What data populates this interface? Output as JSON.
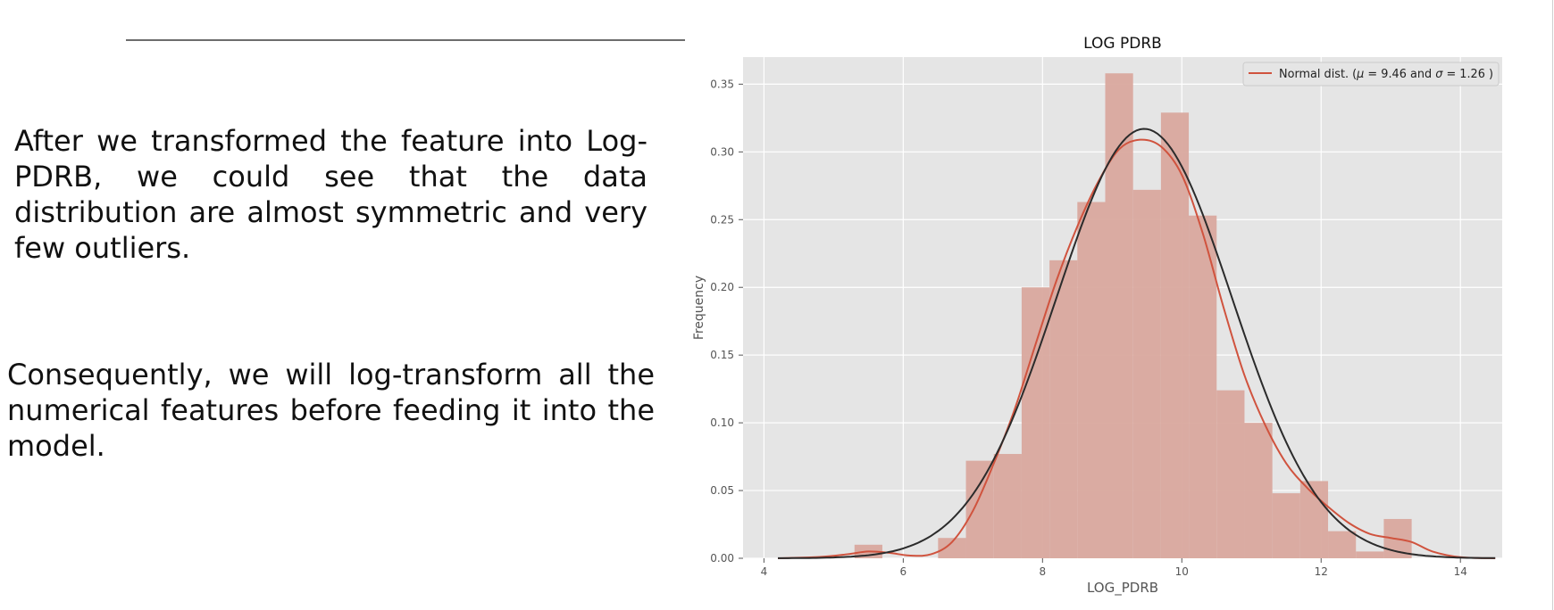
{
  "slide": {
    "paragraph_1": "After we transformed the feature into Log-PDRB, we could see that the data distribution are almost symmetric and very few outliers.",
    "paragraph_2": "Consequently, we will log-transform all the numerical features before feeding it into the model."
  },
  "colors": {
    "plot_bg": "#e5e5e5",
    "grid": "#ffffff",
    "hist_fill": "#d9a89e",
    "kde_line": "#d0533e",
    "normal_line": "#2b2b2b",
    "text": "#333333",
    "tick": "#555555"
  },
  "chart_data": {
    "type": "histogram",
    "title": "LOG PDRB",
    "xlabel": "LOG_PDRB",
    "ylabel": "Frequency",
    "xlim": [
      3.7,
      14.6
    ],
    "ylim": [
      0,
      0.37
    ],
    "xticks": [
      4,
      6,
      8,
      10,
      12,
      14
    ],
    "yticks": [
      0.0,
      0.05,
      0.1,
      0.15,
      0.2,
      0.25,
      0.3,
      0.35
    ],
    "ytick_labels": [
      "0.00",
      "0.05",
      "0.10",
      "0.15",
      "0.20",
      "0.25",
      "0.30",
      "0.35"
    ],
    "grid": true,
    "legend": {
      "position": "top-right",
      "label_prefix": "Normal dist. (",
      "mu_label": "μ = ",
      "mu": "9.46",
      "and": " and ",
      "sigma_label": "σ = ",
      "sigma": "1.26",
      "label_suffix": " )"
    },
    "normal_fit": {
      "mu": 9.46,
      "sigma": 1.26,
      "peak": 0.317
    },
    "histogram": {
      "bin_edges": [
        5.3,
        5.7,
        6.1,
        6.5,
        6.9,
        7.3,
        7.7,
        8.1,
        8.5,
        8.9,
        9.3,
        9.7,
        10.1,
        10.5,
        10.9,
        11.3,
        11.7,
        12.1,
        12.5,
        12.9,
        13.3,
        13.5
      ],
      "frequencies": [
        0.01,
        0.0,
        0.0,
        0.015,
        0.072,
        0.077,
        0.2,
        0.22,
        0.263,
        0.358,
        0.272,
        0.329,
        0.253,
        0.124,
        0.1,
        0.048,
        0.057,
        0.02,
        0.005,
        0.029,
        0.0
      ]
    },
    "kde": {
      "x": [
        4.2,
        4.8,
        5.2,
        5.5,
        5.8,
        6.1,
        6.4,
        6.7,
        7.0,
        7.3,
        7.6,
        7.9,
        8.2,
        8.5,
        8.8,
        9.1,
        9.4,
        9.7,
        10.0,
        10.3,
        10.6,
        10.9,
        11.2,
        11.5,
        11.8,
        12.1,
        12.4,
        12.7,
        13.0,
        13.3,
        13.6,
        14.0,
        14.5
      ],
      "y": [
        0.0,
        0.001,
        0.003,
        0.005,
        0.004,
        0.002,
        0.003,
        0.012,
        0.035,
        0.07,
        0.11,
        0.158,
        0.205,
        0.245,
        0.278,
        0.302,
        0.309,
        0.304,
        0.283,
        0.24,
        0.185,
        0.135,
        0.098,
        0.07,
        0.052,
        0.038,
        0.026,
        0.018,
        0.015,
        0.012,
        0.005,
        0.0008,
        0.0
      ]
    }
  }
}
